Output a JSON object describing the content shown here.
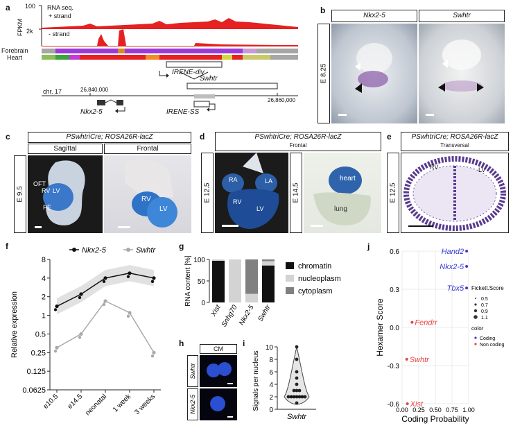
{
  "panels": {
    "a": "a",
    "b": "b",
    "c": "c",
    "d": "d",
    "e": "e",
    "f": "f",
    "g": "g",
    "h": "h",
    "i": "i",
    "j": "j"
  },
  "panel_a": {
    "fpkm_label": "FPKM",
    "plus_max": "100",
    "minus_max": "2k",
    "rnaseq_label": "RNA seq.",
    "plus_label": "+ strand",
    "minus_label": "- strand",
    "track_forebrain": "Forebrain",
    "track_heart": "Heart",
    "irene_div": "IRENE-div",
    "swhtr": "Swhtr",
    "chr": "chr. 17",
    "coord_left": "26,840,000",
    "coord_right": "26,860,000",
    "nkx25": "Nkx2-5",
    "irene_ss": "IRENE-SS"
  },
  "panel_b": {
    "stage": "E 8.25",
    "col1": "Nkx2-5",
    "col2": "Swhtr"
  },
  "panel_c": {
    "header": "PSwhtriCre; ROSA26R-lacZ",
    "col1": "Sagittal",
    "col2": "Frontal",
    "stage": "E 9.5",
    "labels": [
      "OFT",
      "RV",
      "LV",
      "PE",
      "RV",
      "LV"
    ]
  },
  "panel_d": {
    "header": "PSwhtriCre; ROSA26R-lacZ",
    "sub": "Frontal",
    "stage1": "E 12.5",
    "stage2": "E 14.5",
    "labels": [
      "RA",
      "LA",
      "RV",
      "LV",
      "heart",
      "lung"
    ]
  },
  "panel_e": {
    "header": "PSwhtriCre; ROSA26R-lacZ",
    "sub": "Transversal",
    "stage": "E 12.5",
    "labels": [
      "RV",
      "LV"
    ]
  },
  "panel_h": {
    "header": "CM",
    "row1": "Swhtr",
    "row2": "Nkx2-5"
  },
  "chart_data": [
    {
      "id": "f",
      "type": "line",
      "xlabel": "",
      "ylabel": "Relative expression",
      "y_scale": "log2",
      "y_ticks": [
        "8",
        "4",
        "2",
        "1",
        "0.5",
        "0.25",
        "0.125",
        "0.0625"
      ],
      "y_tick_values": [
        8,
        4,
        2,
        1,
        0.5,
        0.25,
        0.125,
        0.0625
      ],
      "categories": [
        "e10.5",
        "e14.5",
        "neonatal",
        "1 week",
        "3 weeks"
      ],
      "series": [
        {
          "name": "Nkx2-5",
          "color": "#111111",
          "values": [
            1.4,
            2.2,
            4.0,
            4.8,
            4.0
          ]
        },
        {
          "name": "Swhtr",
          "color": "#a9a9a9",
          "values": [
            0.3,
            0.5,
            1.7,
            1.1,
            0.25
          ]
        }
      ],
      "legend_position": "top",
      "grid": false
    },
    {
      "id": "g",
      "type": "bar",
      "stacked": true,
      "ylabel": "RNA content [%]",
      "ylim": [
        0,
        100
      ],
      "y_ticks": [
        "0",
        "50",
        "100"
      ],
      "y_tick_values": [
        0,
        50,
        100
      ],
      "categories": [
        "Xist",
        "Snhg70",
        "Nkx2-5",
        "Swhtr"
      ],
      "series": [
        {
          "name": "chromatin",
          "color": "#111111",
          "values": [
            97,
            0,
            0,
            86
          ]
        },
        {
          "name": "nucleoplasm",
          "color": "#d3d3d3",
          "values": [
            3,
            100,
            20,
            10
          ]
        },
        {
          "name": "cytoplasm",
          "color": "#808080",
          "values": [
            0,
            0,
            80,
            4
          ]
        }
      ],
      "legend_position": "right"
    },
    {
      "id": "i",
      "type": "scatter",
      "ylabel": "Signals per nucleus",
      "xlabel": "Swhtr",
      "ylim": [
        0,
        10
      ],
      "y_ticks": [
        "0",
        "2",
        "4",
        "6",
        "8",
        "10"
      ],
      "y_tick_values": [
        0,
        2,
        4,
        6,
        8,
        10
      ],
      "values": [
        2,
        2,
        2,
        2,
        2,
        2,
        3,
        3,
        3,
        2,
        4,
        5,
        6,
        8,
        10,
        1
      ]
    },
    {
      "id": "j",
      "type": "scatter",
      "xlabel": "Coding Probability",
      "ylabel": "Hexamer Score",
      "xlim": [
        0,
        1
      ],
      "ylim": [
        -0.6,
        0.6
      ],
      "x_ticks": [
        "0.00",
        "0.25",
        "0.50",
        "0.75",
        "1.00"
      ],
      "x_tick_values": [
        0,
        0.25,
        0.5,
        0.75,
        1
      ],
      "y_ticks": [
        "0.6",
        "0.3",
        "0.0",
        "-0.3",
        "-0.6"
      ],
      "y_tick_values": [
        0.6,
        0.3,
        0,
        -0.3,
        -0.6
      ],
      "grid": true,
      "points": [
        {
          "label": "Hand2",
          "x": 0.97,
          "y": 0.6,
          "color": "#3a3ad8"
        },
        {
          "label": "Nkx2-5",
          "x": 0.97,
          "y": 0.48,
          "color": "#3a3ad8"
        },
        {
          "label": "Tbx5",
          "x": 0.97,
          "y": 0.31,
          "color": "#3a3ad8"
        },
        {
          "label": "Fendrr",
          "x": 0.15,
          "y": 0.04,
          "color": "#e64545"
        },
        {
          "label": "Swhtr",
          "x": 0.07,
          "y": -0.25,
          "color": "#e64545"
        },
        {
          "label": "Xist",
          "x": 0.08,
          "y": -0.6,
          "color": "#e64545"
        }
      ],
      "legend_size_title": "Fickett.Score",
      "legend_sizes": [
        "0.5",
        "0.7",
        "0.9",
        "1.1"
      ],
      "legend_color_title": "color",
      "legend_colors": [
        {
          "label": "Coding",
          "color": "#3a3ad8"
        },
        {
          "label": "Non coding",
          "color": "#e64545"
        }
      ]
    }
  ]
}
